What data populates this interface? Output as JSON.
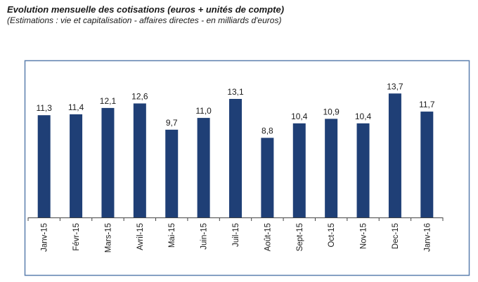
{
  "header": {
    "title": "Evolution mensuelle des cotisations (euros + unités de compte)",
    "subtitle": "(Estimations : vie et capitalisation - affaires directes - en milliards d'euros)"
  },
  "colors": {
    "bar": "#1f3f76",
    "frame": "#5b7fae",
    "axis": "#444444"
  },
  "chart_data": {
    "type": "bar",
    "title": "Evolution mensuelle des cotisations (euros + unités de compte)",
    "subtitle": "(Estimations : vie et capitalisation - affaires directes - en milliards d'euros)",
    "categories": [
      "Janv-15",
      "Févr-15",
      "Mars-15",
      "Avril-15",
      "Mai-15",
      "Juin-15",
      "Juil-15",
      "Août-15",
      "Sept-15",
      "Oct-15",
      "Nov-15",
      "Dec-15",
      "Janv-16"
    ],
    "values": [
      11.3,
      11.4,
      12.1,
      12.6,
      9.7,
      11.0,
      13.1,
      8.8,
      10.4,
      10.9,
      10.4,
      13.7,
      11.7
    ],
    "value_labels": [
      "11,3",
      "11,4",
      "12,1",
      "12,6",
      "9,7",
      "11,0",
      "13,1",
      "8,8",
      "10,4",
      "10,9",
      "10,4",
      "13,7",
      "11,7"
    ],
    "xlabel": "",
    "ylabel": "",
    "ylim": [
      0,
      15.5
    ],
    "grid": false,
    "legend": "none"
  }
}
